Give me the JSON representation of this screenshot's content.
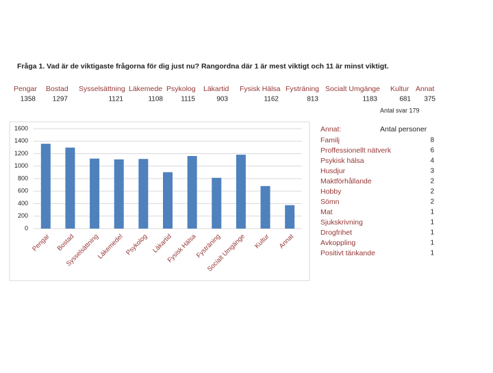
{
  "title": "Fråga 1. Vad är de viktigaste frågorna för dig just nu? Rangordna där 1 är mest viktigt och 11 är minst viktigt.",
  "table": {
    "headers": [
      "Pengar",
      "Bostad",
      "Sysselsättning",
      "Läkemede",
      "Psykolog",
      "Läkartid",
      "Fysisk Hälsa",
      "Fysträning",
      "Socialt Umgänge",
      "Kultur",
      "Annat"
    ],
    "values": [
      "1358",
      "1297",
      "1121",
      "1108",
      "1115",
      "903",
      "1162",
      "813",
      "1183",
      "681",
      "375"
    ]
  },
  "responses": "Antal svar  179",
  "chart_data": {
    "type": "bar",
    "categories": [
      "Pengar",
      "Bostad",
      "Sysselsättning",
      "Läkemedel",
      "Psykolog",
      "Läkartid",
      "Fysisk Hälsa",
      "Fysträning",
      "Socialt Umgänge",
      "Kultur",
      "Annat"
    ],
    "values": [
      1358,
      1297,
      1121,
      1108,
      1115,
      903,
      1162,
      813,
      1183,
      681,
      375
    ],
    "color": "#4f81bd",
    "ylim": [
      0,
      1600
    ],
    "yticks": [
      0,
      200,
      400,
      600,
      800,
      1000,
      1200,
      1400,
      1600
    ],
    "grid": true
  },
  "other": {
    "heading": "Annat:",
    "count_heading": "Antal personer",
    "items": [
      [
        "Familj",
        "8"
      ],
      [
        "Proffessionellt nätverk",
        "6"
      ],
      [
        "Psykisk hälsa",
        "4"
      ],
      [
        "Husdjur",
        "3"
      ],
      [
        "Maktförhållande",
        "2"
      ],
      [
        "Hobby",
        "2"
      ],
      [
        "Sömn",
        "2"
      ],
      [
        "Mat",
        "1"
      ],
      [
        "Sjukskrivning",
        "1"
      ],
      [
        "Drogfrihet",
        "1"
      ],
      [
        "Avkoppling",
        "1"
      ],
      [
        "Positivt tänkande",
        "1"
      ]
    ]
  }
}
